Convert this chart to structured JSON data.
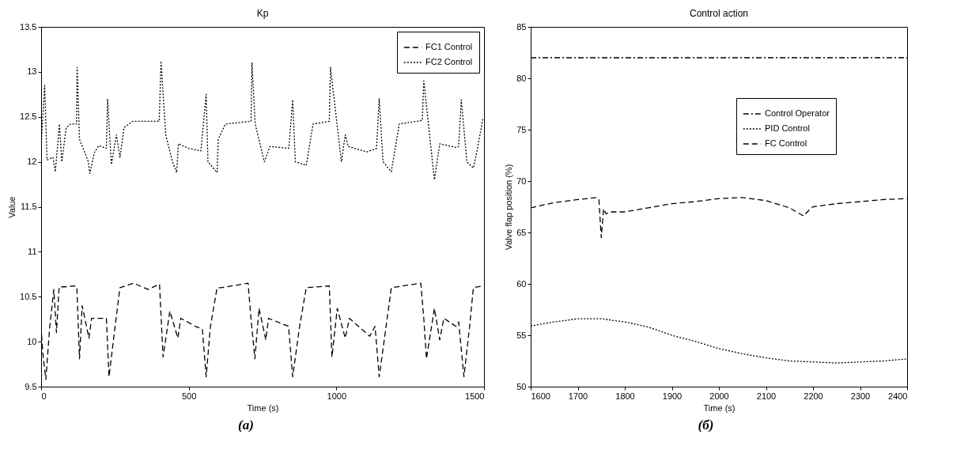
{
  "chart_data": [
    {
      "type": "line",
      "title": "Kp",
      "xlabel": "Time (s)",
      "ylabel": "Value",
      "xlim": [
        0,
        1500
      ],
      "xticks": [
        0,
        500,
        1000,
        1500
      ],
      "ylim": [
        9.5,
        13.5
      ],
      "yticks": [
        9.5,
        10,
        10.5,
        11,
        11.5,
        12,
        12.5,
        13,
        13.5
      ],
      "legend": "top right",
      "annotations": [
        "(a)"
      ],
      "series": [
        {
          "name": "FC1 Control",
          "color": "#000000",
          "line_style": "dashed",
          "x": [
            0,
            5,
            16,
            29,
            43,
            52,
            61,
            80,
            112,
            121,
            130,
            139,
            162,
            171,
            221,
            230,
            249,
            267,
            313,
            363,
            401,
            413,
            436,
            463,
            473,
            523,
            546,
            559,
            573,
            596,
            610,
            701,
            711,
            724,
            738,
            761,
            770,
            838,
            852,
            875,
            898,
            976,
            985,
            1003,
            1030,
            1044,
            1113,
            1131,
            1145,
            1168,
            1186,
            1286,
            1296,
            1305,
            1332,
            1350,
            1364,
            1405,
            1414,
            1432,
            1451,
            1464,
            1496
          ],
          "values": [
            10.17,
            9.89,
            9.58,
            10.16,
            10.58,
            10.1,
            10.61,
            10.61,
            10.62,
            10.61,
            9.81,
            10.4,
            10.04,
            10.26,
            10.26,
            9.61,
            10.13,
            10.6,
            10.65,
            10.58,
            10.64,
            9.83,
            10.34,
            10.04,
            10.26,
            10.17,
            10.14,
            9.61,
            10.16,
            10.6,
            10.6,
            10.65,
            10.25,
            9.81,
            10.37,
            10.02,
            10.26,
            10.17,
            9.61,
            10.16,
            10.6,
            10.62,
            9.83,
            10.37,
            10.04,
            10.26,
            10.06,
            10.17,
            9.61,
            10.16,
            10.6,
            10.65,
            10.26,
            9.81,
            10.37,
            10.02,
            10.26,
            10.17,
            10.22,
            9.61,
            10.16,
            10.6,
            10.62
          ]
        },
        {
          "name": "FC2 Control",
          "color": "#000000",
          "line_style": "dotted",
          "x": [
            0,
            12,
            20,
            40,
            48,
            62,
            70,
            85,
            100,
            120,
            122,
            130,
            160,
            165,
            180,
            195,
            221,
            225,
            238,
            255,
            267,
            281,
            310,
            400,
            406,
            422,
            445,
            459,
            465,
            500,
            541,
            559,
            565,
            596,
            600,
            624,
            711,
            714,
            725,
            756,
            775,
            839,
            852,
            861,
            898,
            921,
            976,
            980,
            1017,
            1030,
            1040,
            1104,
            1136,
            1145,
            1158,
            1186,
            1213,
            1291,
            1296,
            1332,
            1350,
            1405,
            1414,
            1423,
            1442,
            1464,
            1478,
            1496
          ],
          "values": [
            12.17,
            12.85,
            12.02,
            12.05,
            11.89,
            12.42,
            12.0,
            12.38,
            12.42,
            12.42,
            13.05,
            12.25,
            12.0,
            11.87,
            12.1,
            12.18,
            12.15,
            12.7,
            11.97,
            12.3,
            12.05,
            12.38,
            12.45,
            12.45,
            13.12,
            12.3,
            12.0,
            11.88,
            12.2,
            12.15,
            12.12,
            12.75,
            12.0,
            11.88,
            12.25,
            12.42,
            12.45,
            13.1,
            12.42,
            12.0,
            12.17,
            12.15,
            12.69,
            12.0,
            11.96,
            12.42,
            12.45,
            13.05,
            12.0,
            12.3,
            12.17,
            12.11,
            12.15,
            12.7,
            12.0,
            11.89,
            12.42,
            12.46,
            12.9,
            11.8,
            12.2,
            12.16,
            12.17,
            12.69,
            12.0,
            11.93,
            12.15,
            12.48
          ]
        }
      ]
    },
    {
      "type": "line",
      "title": "Control action",
      "xlabel": "Time (s)",
      "ylabel": "Valve flap position (%)",
      "xlim": [
        1600,
        2400
      ],
      "xticks": [
        1600,
        1700,
        1800,
        1900,
        2000,
        2100,
        2200,
        2300,
        2400
      ],
      "ylim": [
        50,
        85
      ],
      "yticks": [
        50,
        55,
        60,
        65,
        70,
        75,
        80,
        85
      ],
      "legend": "top right",
      "annotations": [
        "(б)"
      ],
      "series": [
        {
          "name": "Control Operator",
          "color": "#000000",
          "line_style": "dashdot",
          "x": [
            1600,
            2400
          ],
          "values": [
            82,
            82
          ]
        },
        {
          "name": "PID Control",
          "color": "#000000",
          "line_style": "dotted",
          "x": [
            1600,
            1650,
            1700,
            1750,
            1800,
            1850,
            1900,
            1950,
            2000,
            2050,
            2100,
            2150,
            2200,
            2250,
            2300,
            2350,
            2400
          ],
          "values": [
            55.9,
            56.3,
            56.6,
            56.6,
            56.3,
            55.8,
            55.0,
            54.4,
            53.7,
            53.2,
            52.8,
            52.5,
            52.4,
            52.3,
            52.4,
            52.5,
            52.7
          ]
        },
        {
          "name": "FC Control",
          "color": "#000000",
          "line_style": "dashed",
          "x": [
            1600,
            1650,
            1700,
            1740,
            1745,
            1750,
            1755,
            1760,
            1770,
            1800,
            1850,
            1900,
            1950,
            2000,
            2050,
            2100,
            2150,
            2180,
            2190,
            2200,
            2250,
            2300,
            2350,
            2400
          ],
          "values": [
            67.4,
            67.9,
            68.2,
            68.4,
            68.2,
            64.5,
            67.3,
            66.8,
            67.0,
            67.0,
            67.4,
            67.8,
            68.0,
            68.3,
            68.4,
            68.1,
            67.4,
            66.6,
            67.1,
            67.5,
            67.8,
            68.0,
            68.2,
            68.3
          ]
        }
      ]
    }
  ]
}
